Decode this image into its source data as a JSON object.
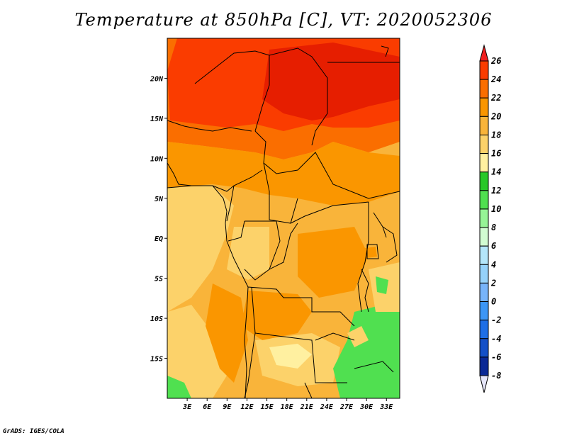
{
  "title": "Temperature at 850hPa [C], VT: 2020052306",
  "credit": "GrADS: IGES/COLA",
  "map": {
    "lon_range": [
      0,
      35
    ],
    "lat_range": [
      -20,
      25
    ],
    "lat_labels": [
      "20N",
      "15N",
      "10N",
      "5N",
      "EQ",
      "5S",
      "10S",
      "15S"
    ],
    "lat_values": [
      20,
      15,
      10,
      5,
      0,
      -5,
      -10,
      -15
    ],
    "lon_labels": [
      "3E",
      "6E",
      "9E",
      "12E",
      "15E",
      "18E",
      "21E",
      "24E",
      "27E",
      "30E",
      "33E"
    ],
    "lon_values": [
      3,
      6,
      9,
      12,
      15,
      18,
      21,
      24,
      27,
      30,
      33
    ]
  },
  "colorbar": {
    "levels": [
      "26",
      "24",
      "22",
      "20",
      "18",
      "16",
      "14",
      "12",
      "10",
      "8",
      "6",
      "4",
      "2",
      "0",
      "-2",
      "-4",
      "-6",
      "-8"
    ],
    "colors": [
      "#f01e1e",
      "#fa3c00",
      "#fa6e00",
      "#fa9600",
      "#f9b43a",
      "#fcd26a",
      "#fff0a0",
      "#28c828",
      "#50e050",
      "#96f496",
      "#d2fcd2",
      "#b4e6fa",
      "#96d2fa",
      "#78b4fa",
      "#3c96f5",
      "#1e6ee6",
      "#1450c8",
      "#0a2896",
      "#0a0a5a",
      "#e6e6fa"
    ]
  }
}
